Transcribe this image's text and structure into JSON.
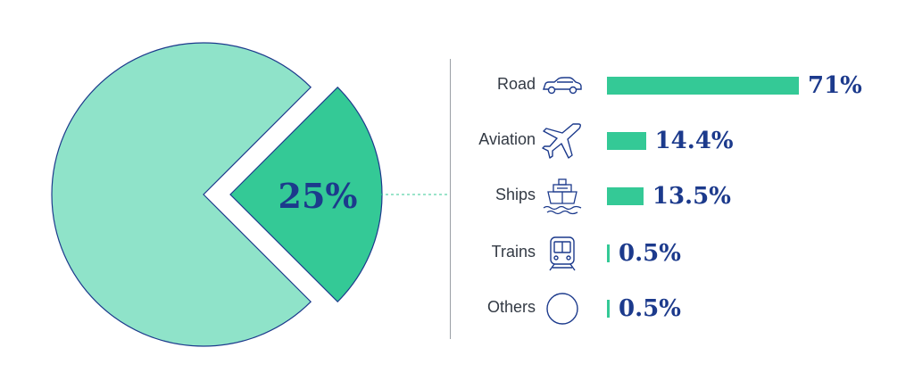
{
  "chart_data": [
    {
      "type": "pie",
      "slices": [
        {
          "label": "",
          "value": 75,
          "color": "#8fe3c9"
        },
        {
          "label": "25%",
          "value": 25,
          "color": "#34c996",
          "exploded": true
        }
      ],
      "highlight_label": "25%"
    },
    {
      "type": "bar",
      "orientation": "horizontal",
      "categories": [
        "Road",
        "Aviation",
        "Ships",
        "Trains",
        "Others"
      ],
      "values": [
        71,
        14.4,
        13.5,
        0.5,
        0.5
      ],
      "value_labels": [
        "71%",
        "14.4%",
        "13.5%",
        "0.5%",
        "0.5%"
      ],
      "icons": [
        "car-icon",
        "airplane-icon",
        "ship-icon",
        "train-icon",
        "circle-icon"
      ],
      "bar_color": "#34c996",
      "xlim": [
        0,
        71
      ]
    }
  ],
  "colors": {
    "pie_main": "#8fe3c9",
    "pie_highlight": "#34c996",
    "outline": "#1c3a8c",
    "value_text": "#1c3a8c",
    "label_text": "#333a44"
  }
}
